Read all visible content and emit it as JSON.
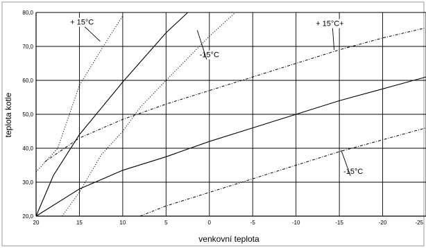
{
  "chart_data": {
    "type": "line",
    "title": "",
    "xlabel": "venkovní teplota",
    "ylabel": "teplota kotle",
    "xlim": [
      20,
      -25
    ],
    "ylim": [
      20,
      80
    ],
    "x_ticks": [
      "20",
      "15",
      "10",
      "5",
      "0",
      "-5",
      "-10",
      "-15",
      "-20",
      "-25"
    ],
    "y_ticks": [
      "20,0",
      "30,0",
      "40,0",
      "50,0",
      "60,0",
      "70,0",
      "80,0"
    ],
    "grid": true,
    "legend": "none",
    "series": [
      {
        "style": "dotted",
        "points": [
          [
            20,
            33
          ],
          [
            17.5,
            40
          ],
          [
            15,
            58.5
          ],
          [
            12,
            71
          ],
          [
            10,
            79
          ]
        ]
      },
      {
        "style": "solid",
        "points": [
          [
            20,
            20
          ],
          [
            19,
            26
          ],
          [
            18,
            32
          ],
          [
            15,
            44
          ],
          [
            10,
            59.5
          ],
          [
            5,
            74
          ],
          [
            2.5,
            80
          ]
        ]
      },
      {
        "style": "dotted",
        "points": [
          [
            17,
            20
          ],
          [
            15,
            27
          ],
          [
            12.5,
            38
          ],
          [
            10,
            45
          ],
          [
            8,
            52
          ],
          [
            5,
            60
          ],
          [
            0,
            73
          ],
          [
            -3,
            80
          ]
        ]
      },
      {
        "style": "dash-dot",
        "points": [
          [
            19,
            36
          ],
          [
            15,
            43
          ],
          [
            10,
            48.5
          ],
          [
            5,
            53
          ],
          [
            0,
            57
          ],
          [
            -5,
            61
          ],
          [
            -10,
            65
          ],
          [
            -15,
            69
          ],
          [
            -20,
            72.5
          ],
          [
            -25,
            75.5
          ]
        ]
      },
      {
        "style": "solid",
        "points": [
          [
            20,
            20
          ],
          [
            15,
            28
          ],
          [
            10,
            33.5
          ],
          [
            5,
            37.5
          ],
          [
            0,
            42
          ],
          [
            -5,
            46
          ],
          [
            -10,
            50
          ],
          [
            -15,
            54
          ],
          [
            -20,
            57.5
          ],
          [
            -25,
            61
          ]
        ]
      },
      {
        "style": "dash-dot",
        "points": [
          [
            8,
            20
          ],
          [
            5,
            23
          ],
          [
            0,
            27
          ],
          [
            -5,
            31
          ],
          [
            -10,
            35
          ],
          [
            -15,
            39
          ],
          [
            -20,
            42.5
          ],
          [
            -25,
            46
          ]
        ]
      }
    ],
    "annotations": [
      {
        "text": "+ 15°C",
        "x": 14.7,
        "y": 76.4,
        "lx": 12.6,
        "ly": 71.5
      },
      {
        "text": "-15°C",
        "x": 0.0,
        "y": 66.8,
        "lx": 1.4,
        "ly": 74.8
      },
      {
        "text": "+ 15°C+",
        "x": -13.9,
        "y": 76.0,
        "lx": -14.4,
        "ly": 69.0
      },
      {
        "text": "-15°C",
        "x": -16.6,
        "y": 32.5,
        "lx": -15.2,
        "ly": 39.5
      }
    ]
  }
}
